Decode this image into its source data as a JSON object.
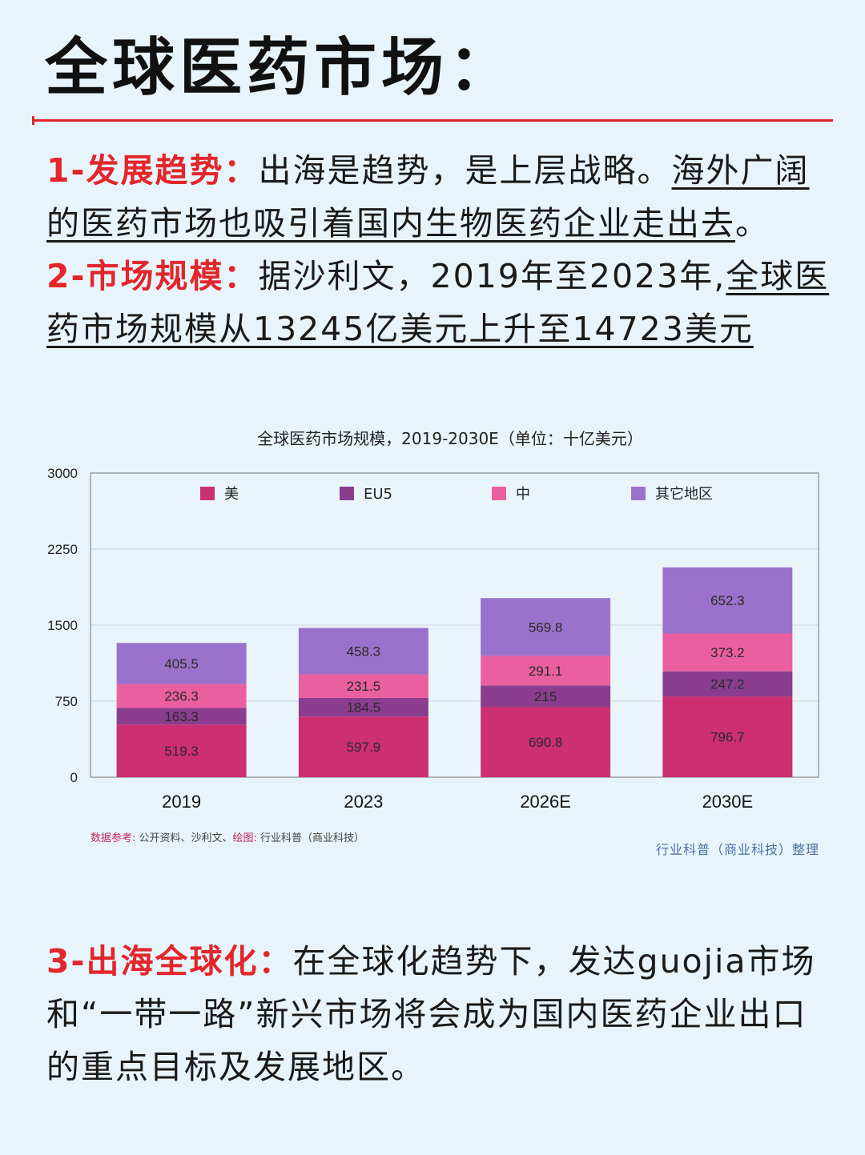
{
  "title": "全球医药市场：",
  "p1": {
    "head": "1-发展趋势：",
    "text": "出海是趋势，是上层战略。",
    "underlined": "海外广阔的医药市场也吸引着国内生物医药企业走出去",
    "tail": "。"
  },
  "p2": {
    "head": "2-市场规模：",
    "text": "据沙利文，2019年至2023年,",
    "underlined": "全球医药市场规模从13245亿美元上升至14723美元"
  },
  "p3": {
    "head": "3-出海全球化：",
    "text": "在全球化趋势下，发达guojia市场和“一带一路”新兴市场将会成为国内医药企业出口的重点目标及发展地区。"
  },
  "source": {
    "label1": "数据参考:",
    "text1": " 公开资料、沙利文、",
    "label2": "绘图:",
    "text2": " 行业科普（商业科技）"
  },
  "credit": "行业科普（商业科技）整理",
  "chart_data": {
    "type": "bar",
    "stacked": true,
    "title": "全球医药市场规模，2019-2030E（单位：十亿美元）",
    "categories": [
      "2019",
      "2023",
      "2026E",
      "2030E"
    ],
    "ylim": [
      0,
      3000
    ],
    "yticks": [
      0,
      750,
      1500,
      2250,
      3000
    ],
    "grid": true,
    "legend_position": "top",
    "series": [
      {
        "name": "美",
        "color": "#cc2f72",
        "values": [
          519.3,
          597.9,
          690.8,
          796.7
        ]
      },
      {
        "name": "EU5",
        "color": "#8a3d8f",
        "values": [
          163.3,
          184.5,
          215,
          247.2
        ]
      },
      {
        "name": "中",
        "color": "#ea5fa0",
        "values": [
          236.3,
          231.5,
          291.1,
          373.2
        ]
      },
      {
        "name": "其它地区",
        "color": "#9b72cb",
        "values": [
          405.5,
          458.3,
          569.8,
          652.3
        ]
      }
    ]
  }
}
